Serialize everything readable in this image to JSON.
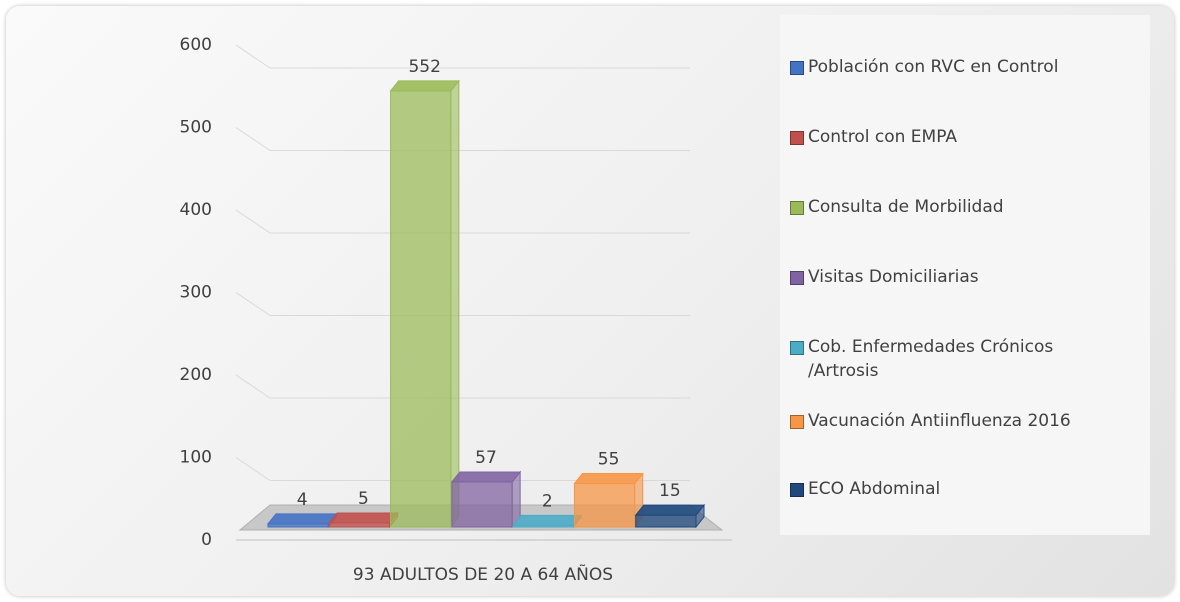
{
  "chart_data": {
    "type": "bar3d",
    "categories": [
      "93 ADULTOS DE 20 A 64 AÑOS"
    ],
    "series": [
      {
        "name": "Población con RVC en Control",
        "color": "#4472c4",
        "values": [
          4
        ]
      },
      {
        "name": "Control con EMPA",
        "color": "#c0504d",
        "values": [
          5
        ]
      },
      {
        "name": "Consulta de Morbilidad",
        "color": "#9bbb59",
        "values": [
          552
        ]
      },
      {
        "name": "Visitas Domiciliarias",
        "color": "#8064a2",
        "values": [
          57
        ]
      },
      {
        "name": "Cob. Enfermedades Crónicos /Artrosis",
        "color": "#4bacc6",
        "values": [
          2
        ]
      },
      {
        "name": "Vacunación Antiinfluenza 2016",
        "color": "#f79646",
        "values": [
          55
        ]
      },
      {
        "name": "ECO Abdominal",
        "color": "#1f497d",
        "values": [
          15
        ]
      }
    ],
    "ylim": [
      0,
      600
    ],
    "yticks": [
      0,
      100,
      200,
      300,
      400,
      500,
      600
    ],
    "grid": true,
    "legend": "right"
  }
}
